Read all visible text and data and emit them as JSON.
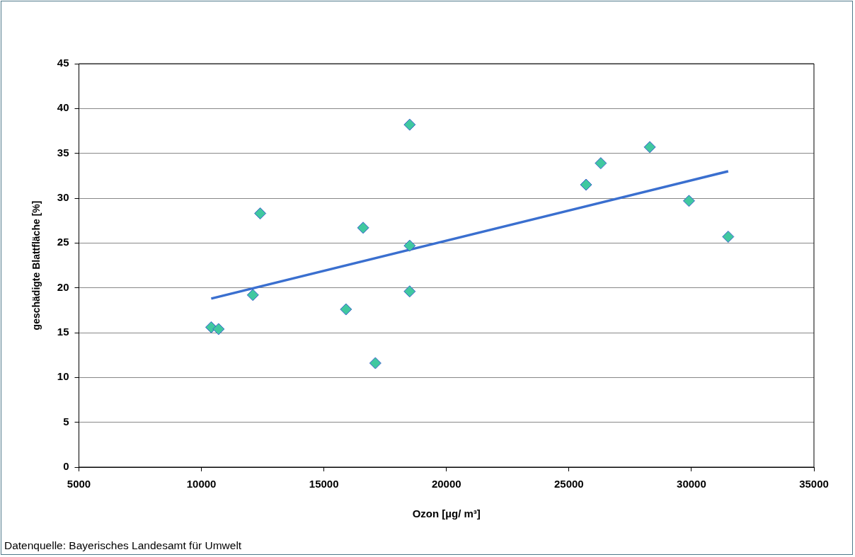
{
  "chart_data": {
    "type": "scatter",
    "xlabel": "Ozon [µg/ m³]",
    "ylabel": "geschädigte Blattfläche [%]",
    "annotations": [
      "Datenquelle: Bayerisches Landesamt für Umwelt"
    ],
    "xlim": [
      5000,
      35000
    ],
    "xticks": [
      5000,
      10000,
      15000,
      20000,
      25000,
      30000,
      35000
    ],
    "ylim": [
      0,
      45
    ],
    "yticks": [
      0,
      5,
      10,
      15,
      20,
      25,
      30,
      35,
      40,
      45
    ],
    "grid": "y",
    "marker": "diamond",
    "series": [
      {
        "type": "scatter",
        "color": "#40c8a0",
        "x": [
          10400,
          10700,
          12100,
          12400,
          15900,
          16600,
          17100,
          18500,
          18500,
          18500,
          25700,
          26300,
          28300,
          29900,
          31500
        ],
        "values": [
          15.6,
          15.4,
          19.2,
          28.3,
          17.6,
          26.7,
          11.6,
          38.2,
          24.7,
          19.6,
          31.5,
          33.9,
          35.7,
          29.7,
          25.7
        ]
      },
      {
        "type": "line",
        "color": "#3a6fcf",
        "marker": "none",
        "line_style": "solid",
        "x": [
          10400,
          31500
        ],
        "values": [
          18.8,
          33.0
        ]
      }
    ]
  }
}
